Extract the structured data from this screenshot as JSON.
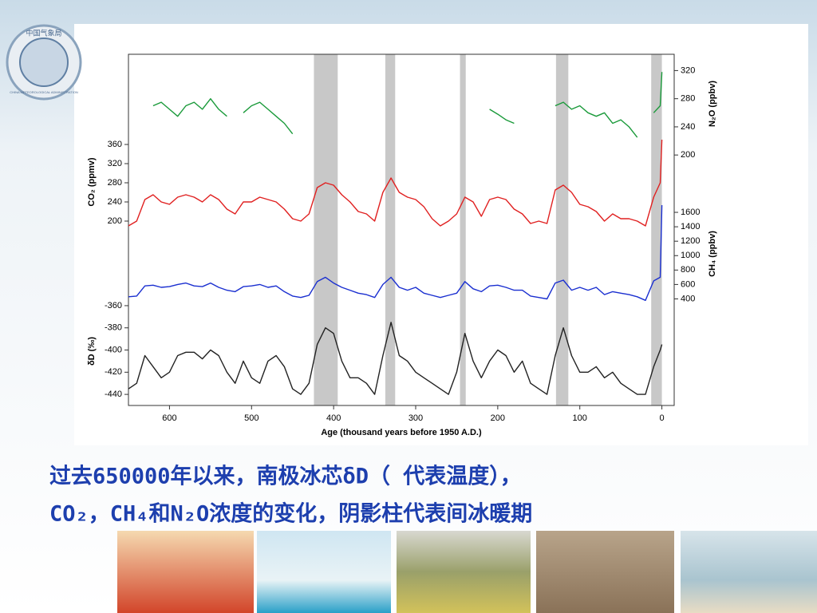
{
  "logo": {
    "top": "中国气象局",
    "bottom": "CHINA METEOROLOGICAL ADMINISTRATION"
  },
  "chart_data": {
    "type": "line",
    "xlabel": "Age (thousand years before 1950 A.D.)",
    "xlim": [
      650,
      -15
    ],
    "xticks": [
      600,
      500,
      400,
      300,
      200,
      100,
      0
    ],
    "shaded_periods": [
      [
        424,
        395
      ],
      [
        337,
        325
      ],
      [
        246,
        239
      ],
      [
        129,
        114
      ],
      [
        13,
        0
      ]
    ],
    "x": [
      650,
      640,
      630,
      620,
      610,
      600,
      590,
      580,
      570,
      560,
      550,
      540,
      530,
      520,
      510,
      500,
      490,
      480,
      470,
      460,
      450,
      440,
      430,
      420,
      410,
      400,
      390,
      380,
      370,
      360,
      350,
      340,
      330,
      320,
      310,
      300,
      290,
      280,
      270,
      260,
      250,
      240,
      230,
      220,
      210,
      200,
      190,
      180,
      170,
      160,
      150,
      140,
      130,
      120,
      110,
      100,
      90,
      80,
      70,
      60,
      50,
      40,
      30,
      20,
      10,
      2,
      0
    ],
    "panels": [
      {
        "ylabel": "N₂O (ppbv)",
        "side": "right",
        "color": "#1a9a3a",
        "ylim": [
          190,
          325
        ],
        "yticks": [
          200,
          240,
          280,
          320
        ],
        "values": [
          null,
          null,
          null,
          270,
          275,
          265,
          255,
          270,
          275,
          265,
          280,
          265,
          255,
          null,
          260,
          270,
          275,
          265,
          255,
          245,
          230,
          null,
          null,
          null,
          null,
          null,
          null,
          null,
          null,
          null,
          null,
          null,
          null,
          null,
          null,
          null,
          null,
          null,
          null,
          null,
          null,
          null,
          null,
          null,
          265,
          258,
          250,
          245,
          null,
          null,
          null,
          null,
          270,
          275,
          265,
          270,
          260,
          255,
          260,
          245,
          250,
          240,
          225,
          null,
          260,
          270,
          318
        ]
      },
      {
        "ylabel": "CO₂ (ppmv)",
        "side": "left",
        "color": "#e02020",
        "ylim": [
          180,
          370
        ],
        "yticks": [
          200,
          240,
          280,
          320,
          360
        ],
        "values": [
          190,
          200,
          245,
          255,
          240,
          235,
          250,
          255,
          250,
          240,
          255,
          245,
          225,
          215,
          240,
          240,
          250,
          245,
          240,
          225,
          205,
          200,
          215,
          270,
          280,
          275,
          255,
          240,
          220,
          215,
          200,
          260,
          290,
          260,
          250,
          245,
          230,
          205,
          190,
          200,
          215,
          250,
          240,
          210,
          245,
          250,
          245,
          225,
          215,
          195,
          200,
          195,
          265,
          275,
          260,
          235,
          230,
          220,
          200,
          215,
          205,
          205,
          200,
          190,
          250,
          280,
          370
        ]
      },
      {
        "ylabel": "CH₄ (ppbv)",
        "side": "right",
        "color": "#1a2fd0",
        "ylim": [
          350,
          1700
        ],
        "yticks": [
          400,
          600,
          800,
          1000,
          1200,
          1400,
          1600
        ],
        "values": [
          430,
          440,
          580,
          590,
          560,
          570,
          600,
          620,
          580,
          570,
          620,
          560,
          520,
          500,
          570,
          580,
          600,
          560,
          580,
          500,
          440,
          420,
          450,
          640,
          700,
          620,
          560,
          520,
          480,
          460,
          420,
          600,
          700,
          560,
          520,
          560,
          480,
          450,
          420,
          450,
          480,
          640,
          540,
          500,
          580,
          590,
          560,
          520,
          520,
          440,
          420,
          400,
          620,
          660,
          520,
          560,
          520,
          560,
          460,
          500,
          480,
          460,
          430,
          380,
          650,
          700,
          1700
        ]
      },
      {
        "ylabel": "δD (‰)",
        "side": "left",
        "color": "#222222",
        "ylim": [
          -450,
          -355
        ],
        "yticks": [
          -440,
          -420,
          -400,
          -380,
          -360
        ],
        "values": [
          -435,
          -430,
          -405,
          -415,
          -425,
          -420,
          -405,
          -402,
          -402,
          -408,
          -400,
          -405,
          -420,
          -430,
          -410,
          -425,
          -430,
          -410,
          -405,
          -415,
          -435,
          -440,
          -430,
          -395,
          -380,
          -385,
          -410,
          -425,
          -425,
          -430,
          -440,
          -405,
          -375,
          -405,
          -410,
          -420,
          -425,
          -430,
          -435,
          -440,
          -420,
          -385,
          -410,
          -425,
          -410,
          -400,
          -405,
          -420,
          -410,
          -430,
          -435,
          -440,
          -405,
          -380,
          -405,
          -420,
          -420,
          -415,
          -425,
          -420,
          -430,
          -435,
          -440,
          -440,
          -415,
          -400,
          -395
        ]
      }
    ]
  },
  "caption": [
    "过去650000年以来，南极冰芯δD（ 代表温度），",
    "CO₂，CH₄和N₂O浓度的变化，阴影柱代表间冰暖期"
  ]
}
